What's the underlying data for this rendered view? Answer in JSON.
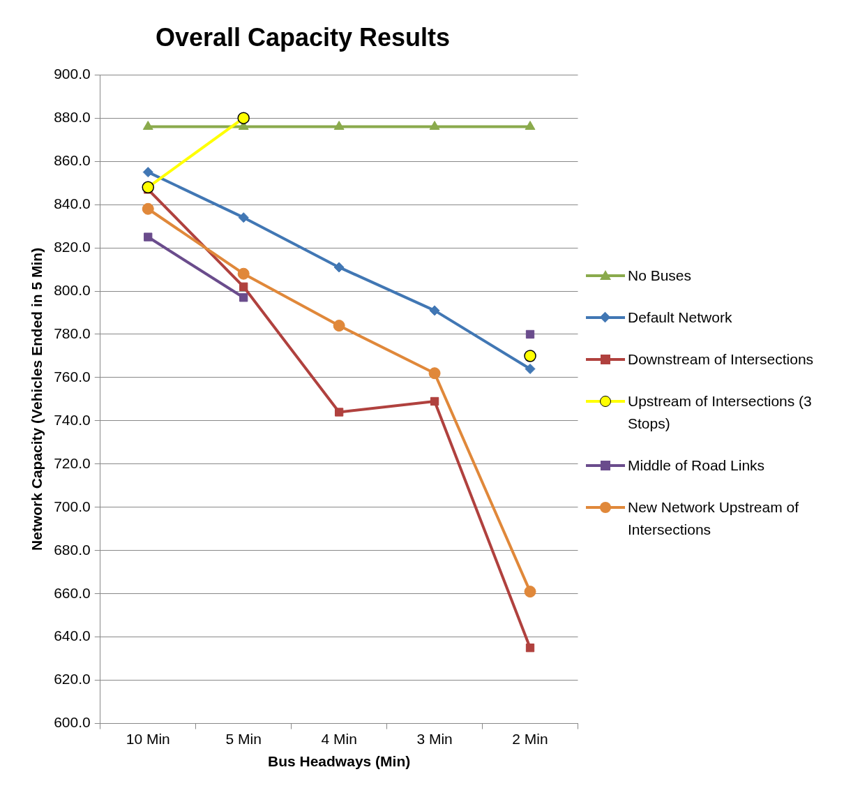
{
  "chart_data": {
    "type": "line",
    "title": "Overall Capacity Results",
    "xlabel": "Bus Headways (Min)",
    "ylabel": "Network Capacity (Vehicles Ended in 5 Min)",
    "categories": [
      "10 Min",
      "5 Min",
      "4 Min",
      "3 Min",
      "2 Min"
    ],
    "ylim": [
      600,
      900
    ],
    "yticks": [
      {
        "value": 600,
        "label": "600.0"
      },
      {
        "value": 620,
        "label": "620.0"
      },
      {
        "value": 640,
        "label": "640.0"
      },
      {
        "value": 660,
        "label": "660.0"
      },
      {
        "value": 680,
        "label": "680.0"
      },
      {
        "value": 700,
        "label": "700.0"
      },
      {
        "value": 720,
        "label": "720.0"
      },
      {
        "value": 740,
        "label": "740.0"
      },
      {
        "value": 760,
        "label": "760.0"
      },
      {
        "value": 780,
        "label": "780.0"
      },
      {
        "value": 800,
        "label": "800.0"
      },
      {
        "value": 820,
        "label": "820.0"
      },
      {
        "value": 840,
        "label": "840.0"
      },
      {
        "value": 860,
        "label": "860.0"
      },
      {
        "value": 880,
        "label": "880.0"
      },
      {
        "value": 900,
        "label": "900.0"
      }
    ],
    "grid": "y",
    "legend": "right",
    "line_style": "solid",
    "series": [
      {
        "name": "No Buses",
        "color": "#8aaa4c",
        "marker": "triangle",
        "values": [
          876,
          876,
          876,
          876,
          876
        ]
      },
      {
        "name": "Default Network",
        "color": "#4177b4",
        "marker": "diamond",
        "values": [
          855,
          834,
          811,
          791,
          764
        ]
      },
      {
        "name": "Downstream of Intersections",
        "color": "#b0413e",
        "marker": "square",
        "values": [
          847,
          802,
          744,
          749,
          635
        ]
      },
      {
        "name": "Upstream of Intersections (3 Stops)",
        "color": "#ffff00",
        "marker": "circle",
        "values": [
          848,
          880,
          null,
          null,
          770
        ]
      },
      {
        "name": "Middle of Road Links",
        "color": "#6a4c8c",
        "marker": "square",
        "values": [
          825,
          797,
          null,
          null,
          780
        ]
      },
      {
        "name": "New Network Upstream of Intersections",
        "color": "#e0883a",
        "marker": "circle",
        "values": [
          838,
          808,
          784,
          762,
          661
        ]
      }
    ]
  }
}
